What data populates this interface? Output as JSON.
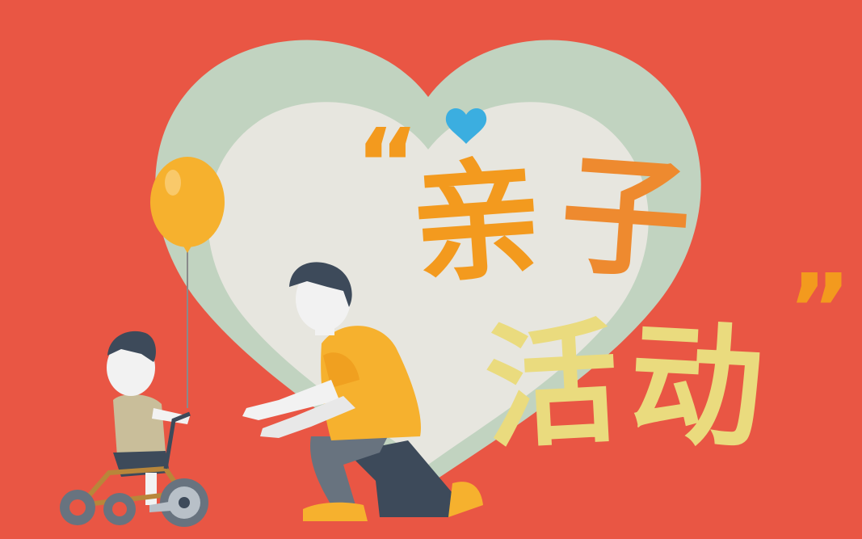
{
  "title": {
    "open_quote": "“",
    "line1_char1": "亲",
    "line1_char2": "子",
    "line2_char1": "活",
    "line2_char2": "动",
    "close_quote": "”"
  },
  "colors": {
    "background": "#E95644",
    "heart_outer": "#C1D3C0",
    "heart_inner": "#E7E6DF",
    "title_orange": "#F39A1E",
    "title_orange_dark": "#EE8A2F",
    "title_yellow": "#EADB7E",
    "small_heart": "#3BAEE0",
    "balloon": "#F6B12E",
    "shirt_yellow": "#F6B12E",
    "pants_dark": "#3D4A5A",
    "pants_grey": "#68737F",
    "hair": "#3D4A5A",
    "skin": "#F2F2F2"
  },
  "icons": [
    "small-heart-icon",
    "balloon-icon",
    "tricycle-icon"
  ]
}
